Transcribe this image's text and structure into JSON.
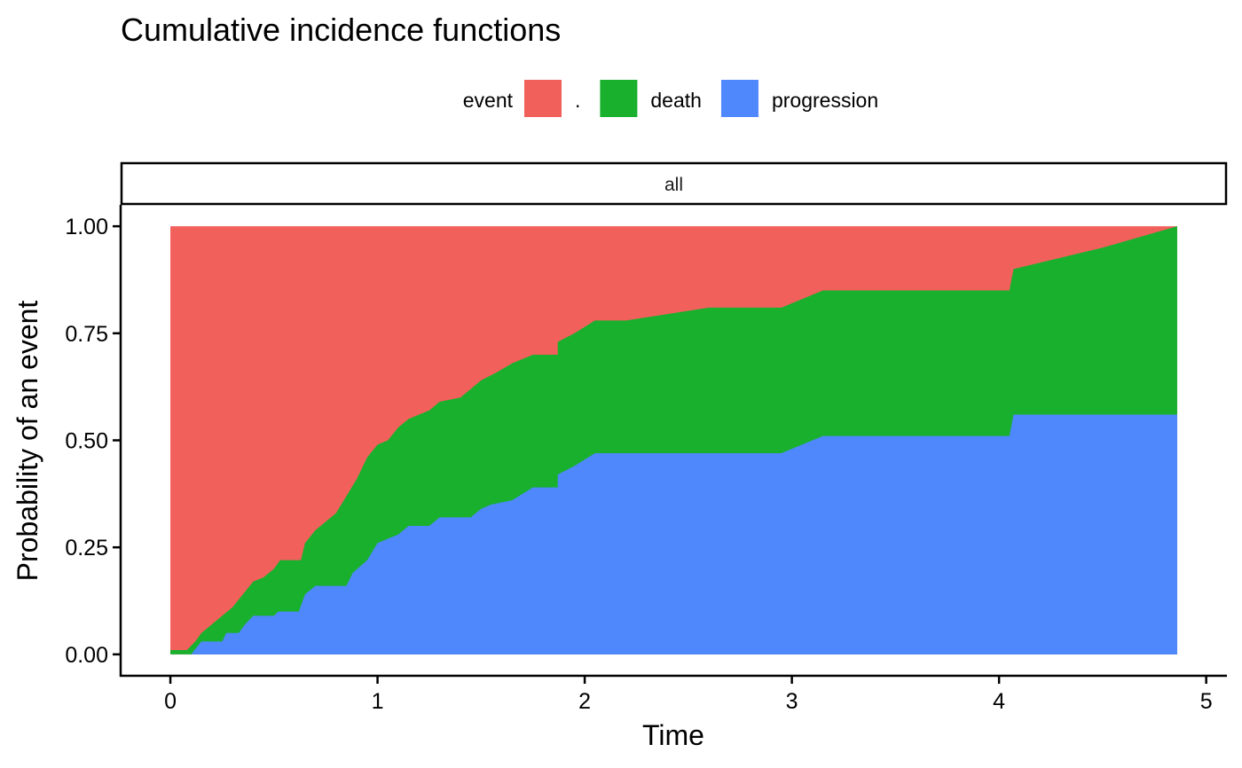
{
  "chart_data": {
    "type": "area",
    "stacked": true,
    "title": "Cumulative incidence functions",
    "xlabel": "Time",
    "ylabel": "Probability of an event",
    "facet": "all",
    "legend": {
      "title": "event",
      "position": "top"
    },
    "xlim": [
      -0.24,
      5.1
    ],
    "ylim": [
      -0.05,
      1.05
    ],
    "xticks": [
      0,
      1,
      2,
      3,
      4,
      5
    ],
    "xtick_labels": [
      "0",
      "1",
      "2",
      "3",
      "4",
      "5"
    ],
    "yticks": [
      0.0,
      0.25,
      0.5,
      0.75,
      1.0
    ],
    "ytick_labels": [
      "0.00",
      "0.25",
      "0.50",
      "0.75",
      "1.00"
    ],
    "grid": false,
    "series": [
      {
        "name": ".",
        "color": "#F2605B",
        "points": [
          [
            0.0,
            1.0
          ],
          [
            4.86,
            1.0
          ]
        ]
      },
      {
        "name": "death",
        "color": "#19B02E",
        "points": [
          [
            0.0,
            0.01
          ],
          [
            0.08,
            0.01
          ],
          [
            0.12,
            0.03
          ],
          [
            0.15,
            0.05
          ],
          [
            0.2,
            0.07
          ],
          [
            0.25,
            0.09
          ],
          [
            0.3,
            0.11
          ],
          [
            0.35,
            0.14
          ],
          [
            0.4,
            0.17
          ],
          [
            0.45,
            0.18
          ],
          [
            0.5,
            0.2
          ],
          [
            0.53,
            0.22
          ],
          [
            0.63,
            0.22
          ],
          [
            0.65,
            0.26
          ],
          [
            0.7,
            0.29
          ],
          [
            0.75,
            0.31
          ],
          [
            0.8,
            0.33
          ],
          [
            0.85,
            0.37
          ],
          [
            0.9,
            0.41
          ],
          [
            0.95,
            0.46
          ],
          [
            1.0,
            0.49
          ],
          [
            1.05,
            0.5
          ],
          [
            1.1,
            0.53
          ],
          [
            1.15,
            0.55
          ],
          [
            1.25,
            0.57
          ],
          [
            1.3,
            0.59
          ],
          [
            1.4,
            0.6
          ],
          [
            1.45,
            0.62
          ],
          [
            1.5,
            0.64
          ],
          [
            1.58,
            0.66
          ],
          [
            1.65,
            0.68
          ],
          [
            1.75,
            0.7
          ],
          [
            1.87,
            0.7
          ],
          [
            1.87,
            0.73
          ],
          [
            1.95,
            0.75
          ],
          [
            2.05,
            0.78
          ],
          [
            2.2,
            0.78
          ],
          [
            2.6,
            0.81
          ],
          [
            2.95,
            0.81
          ],
          [
            3.15,
            0.85
          ],
          [
            4.05,
            0.85
          ],
          [
            4.07,
            0.9
          ],
          [
            4.5,
            0.95
          ],
          [
            4.86,
            1.0
          ]
        ]
      },
      {
        "name": "progression",
        "color": "#4F87FD",
        "points": [
          [
            0.0,
            0.0
          ],
          [
            0.1,
            0.0
          ],
          [
            0.15,
            0.03
          ],
          [
            0.25,
            0.03
          ],
          [
            0.27,
            0.05
          ],
          [
            0.33,
            0.05
          ],
          [
            0.36,
            0.07
          ],
          [
            0.4,
            0.09
          ],
          [
            0.5,
            0.09
          ],
          [
            0.52,
            0.1
          ],
          [
            0.62,
            0.1
          ],
          [
            0.65,
            0.14
          ],
          [
            0.7,
            0.16
          ],
          [
            0.85,
            0.16
          ],
          [
            0.88,
            0.19
          ],
          [
            0.95,
            0.22
          ],
          [
            1.0,
            0.26
          ],
          [
            1.05,
            0.27
          ],
          [
            1.1,
            0.28
          ],
          [
            1.15,
            0.3
          ],
          [
            1.25,
            0.3
          ],
          [
            1.3,
            0.32
          ],
          [
            1.45,
            0.32
          ],
          [
            1.5,
            0.34
          ],
          [
            1.55,
            0.35
          ],
          [
            1.65,
            0.36
          ],
          [
            1.75,
            0.39
          ],
          [
            1.87,
            0.39
          ],
          [
            1.87,
            0.42
          ],
          [
            1.95,
            0.44
          ],
          [
            2.05,
            0.47
          ],
          [
            2.95,
            0.47
          ],
          [
            3.15,
            0.51
          ],
          [
            4.05,
            0.51
          ],
          [
            4.07,
            0.56
          ],
          [
            4.86,
            0.56
          ]
        ]
      }
    ]
  }
}
